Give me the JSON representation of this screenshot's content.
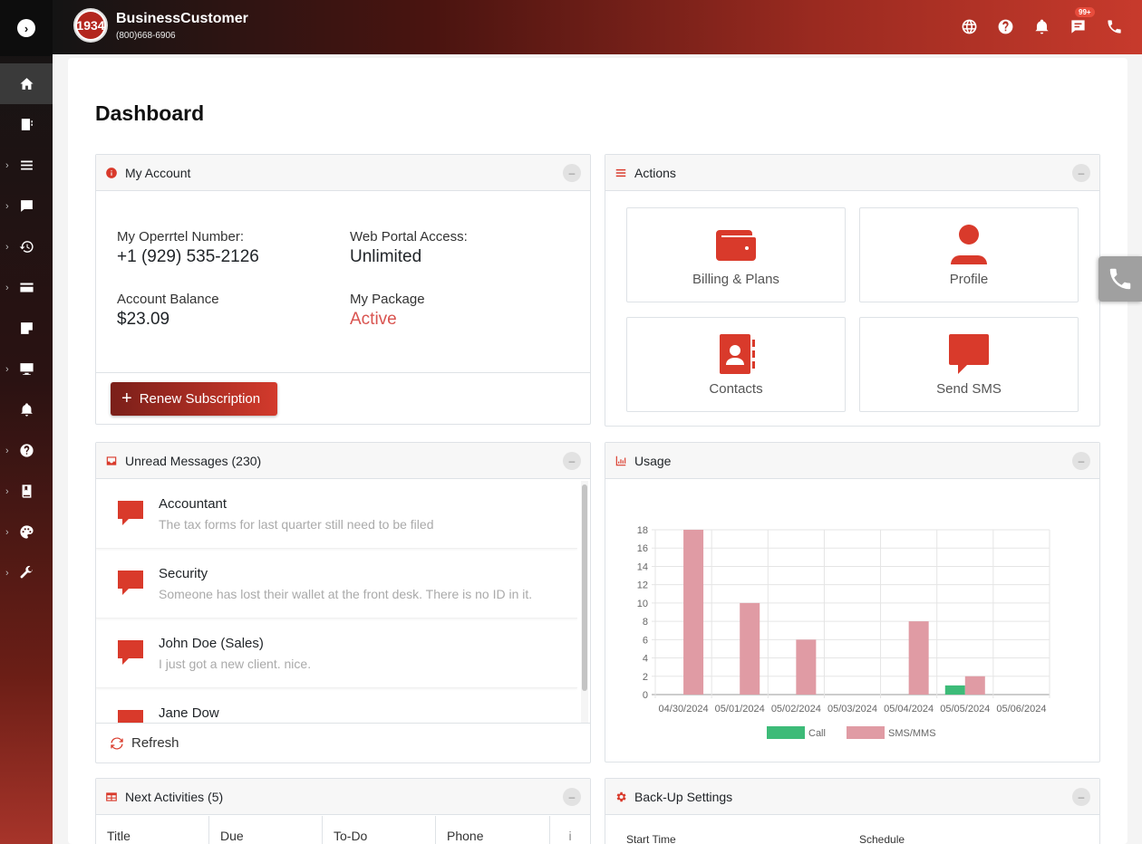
{
  "header": {
    "brand_name": "BusinessCustomer",
    "brand_phone": "(800)668-6906",
    "logo_text": "1934",
    "notification_badge": "99+"
  },
  "page": {
    "title": "Dashboard"
  },
  "my_account": {
    "title": "My Account",
    "number_label": "My Operrtel Number:",
    "number_value": "+1 (929) 535-2126",
    "portal_label": "Web Portal Access:",
    "portal_value": "Unlimited",
    "balance_label": "Account Balance",
    "balance_value": "$23.09",
    "package_label": "My Package",
    "package_value": "Active",
    "renew_label": "Renew Subscription"
  },
  "actions": {
    "title": "Actions",
    "items": [
      {
        "label": "Billing & Plans"
      },
      {
        "label": "Profile"
      },
      {
        "label": "Contacts"
      },
      {
        "label": "Send SMS"
      }
    ]
  },
  "messages": {
    "title": "Unread Messages (230)",
    "items": [
      {
        "name": "Accountant",
        "text": "The tax forms for last quarter still need to be filed"
      },
      {
        "name": "Security",
        "text": "Someone has lost their wallet at the front desk. There is no ID in it."
      },
      {
        "name": "John Doe (Sales)",
        "text": "I just got a new client. nice."
      },
      {
        "name": "Jane Dow",
        "text": ""
      }
    ],
    "refresh_label": "Refresh"
  },
  "usage": {
    "title": "Usage"
  },
  "chart_data": {
    "type": "bar",
    "title": "",
    "categories": [
      "04/30/2024",
      "05/01/2024",
      "05/02/2024",
      "05/03/2024",
      "05/04/2024",
      "05/05/2024",
      "05/06/2024"
    ],
    "series": [
      {
        "name": "Call",
        "color": "#3dbb78",
        "values": [
          0,
          0,
          0,
          0,
          0,
          1,
          0
        ]
      },
      {
        "name": "SMS/MMS",
        "color": "#e09ba4",
        "values": [
          18,
          10,
          6,
          0,
          8,
          2,
          0
        ]
      }
    ],
    "ylim": [
      0,
      18
    ],
    "yticks": [
      0,
      2,
      4,
      6,
      8,
      10,
      12,
      14,
      16,
      18
    ],
    "legend_position": "bottom",
    "grid": true
  },
  "activities": {
    "title": "Next Activities (5)",
    "columns": [
      "Title",
      "Due",
      "To-Do",
      "Phone",
      "i"
    ]
  },
  "backup": {
    "title": "Back-Up Settings",
    "start_time_label": "Start Time",
    "schedule_label": "Schedule"
  },
  "colors": {
    "accent": "#d93a2b",
    "header_dark": "#141414",
    "header_red": "#c73a2c"
  }
}
